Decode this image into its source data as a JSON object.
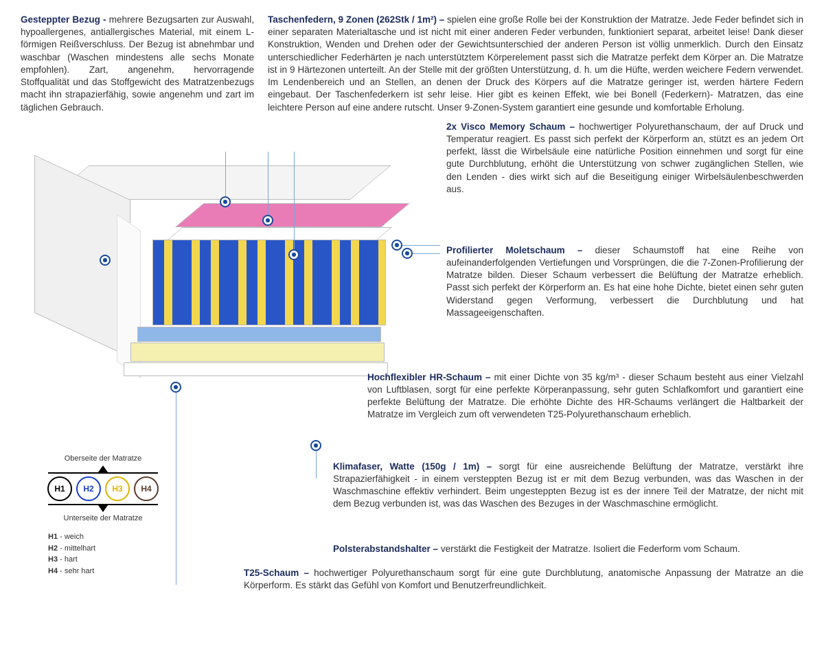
{
  "topLeft": {
    "title": "Gesteppter Bezug -",
    "body": "mehrere Bezugsarten zur Auswahl, hypoallergenes, antiallergisches Material, mit einem L-förmigen Reißverschluss. Der Bezug ist abnehmbar und waschbar (Waschen mindestens alle sechs Monate empfohlen). Zart, angenehm, hervorragende Stoffqualität und das Stoffgewicht des Matratzenbezugs macht ihn strapazierfähig, sowie angenehm und zart im täglichen Gebrauch."
  },
  "topRight": {
    "title": "Taschenfedern, 9 Zonen (262Stk / 1m²) –",
    "body": "spielen eine große Rolle bei der Konstruktion der Matratze. Jede Feder befindet sich in einer separaten Materialtasche und ist nicht mit einer anderen Feder verbunden, funktioniert separat, arbeitet leise! Dank dieser Konstruktion, Wenden und Drehen oder der Gewichtsunterschied der anderen Person ist völlig unmerklich. Durch den Einsatz unterschiedlicher Federhärten je nach unterstütztem Körperelement passt sich die Matratze perfekt dem Körper an. Die Matratze ist in 9 Härtezonen unterteilt. An der Stelle mit der größten Unterstützung, d. h. um die Hüfte, werden weichere Federn verwendet. Im Lendenbereich und an Stellen, an denen der Druck des Körpers auf die Matratze geringer ist, werden härtere Federn eingebaut. Der Taschenfederkern ist sehr leise. Hier gibt es keinen Effekt, wie bei Bonell (Federkern)- Matratzen, das eine leichtere Person auf eine andere rutscht. Unser 9-Zonen-System garantiert eine gesunde und komfortable Erholung."
  },
  "sections": {
    "visco": {
      "title": "2x Visco Memory Schaum –",
      "body": "hochwertiger Polyurethanschaum, der auf Druck und Temperatur reagiert. Es passt sich perfekt der Körperform an, stützt es an jedem Ort perfekt, lässt die Wirbelsäule eine natürliche Position einnehmen und sorgt für eine gute Durchblutung, erhöht die Unterstützung von schwer zugänglichen Stellen, wie den Lenden - dies wirkt sich auf die Beseitigung einiger Wirbelsäulenbeschwerden aus."
    },
    "molet": {
      "title": "Profilierter Moletschaum –",
      "body": "dieser Schaumstoff hat eine Reihe von aufeinanderfolgenden Vertiefungen und Vorsprüngen, die die 7-Zonen-Profilierung der Matratze bilden. Dieser Schaum verbessert die Belüftung der Matratze erheblich. Passt sich perfekt der Körperform an. Es hat eine hohe Dichte, bietet einen sehr guten Widerstand gegen Verformung, verbessert die Durchblutung und hat Massageeigenschaften."
    },
    "hr": {
      "title": "Hochflexibler HR-Schaum –",
      "body": "mit einer Dichte von 35 kg/m³ - dieser Schaum besteht aus einer Vielzahl von Luftblasen, sorgt für eine perfekte Körperanpassung, sehr guten Schlafkomfort und garantiert eine perfekte Belüftung der Matratze. Die erhöhte Dichte des HR-Schaums verlängert die Haltbarkeit der Matratze im Vergleich zum oft verwendeten T25-Polyurethanschaum erheblich."
    },
    "klima": {
      "title": "Klimafaser, Watte (150g / 1m) –",
      "body": "sorgt für eine ausreichende Belüftung der Matratze, verstärkt ihre Strapazierfähigkeit - in einem versteppten Bezug ist er mit dem Bezug verbunden, was das Waschen in der Waschmaschine effektiv verhindert. Beim ungesteppten Bezug ist es der innere Teil der Matratze, der nicht mit dem Bezug verbunden ist, was das Waschen des Bezuges in der Waschmaschine ermöglicht."
    },
    "polster": {
      "title": "Polsterabstandshalter –",
      "body": "verstärkt die Festigkeit der Matratze. Isoliert die Federform vom Schaum."
    },
    "t25": {
      "title": "T25-Schaum –",
      "body": "hochwertiger Polyurethanschaum sorgt für eine gute Durchblutung, anatomische Anpassung der Matratze an die Körperform. Es stärkt das Gefühl von Komfort und Benutzerfreundlichkeit."
    }
  },
  "legend": {
    "top_label": "Oberseite der Matratze",
    "bot_label": "Unterseite der Matratze",
    "circles": [
      {
        "label": "H1",
        "color": "#000000"
      },
      {
        "label": "H2",
        "color": "#1a3ec9"
      },
      {
        "label": "H3",
        "color": "#e0b400"
      },
      {
        "label": "H4",
        "color": "#5b3a2a"
      }
    ],
    "items": [
      {
        "code": "H1",
        "txt": "- weich"
      },
      {
        "code": "H2",
        "txt": "- mittelhart"
      },
      {
        "code": "H3",
        "txt": "- hart"
      },
      {
        "code": "H4",
        "txt": "- sehr hart"
      }
    ]
  },
  "colors": {
    "title": "#1a2a5c",
    "line": "#7aa4d8",
    "dot": "#1a4a9c"
  }
}
